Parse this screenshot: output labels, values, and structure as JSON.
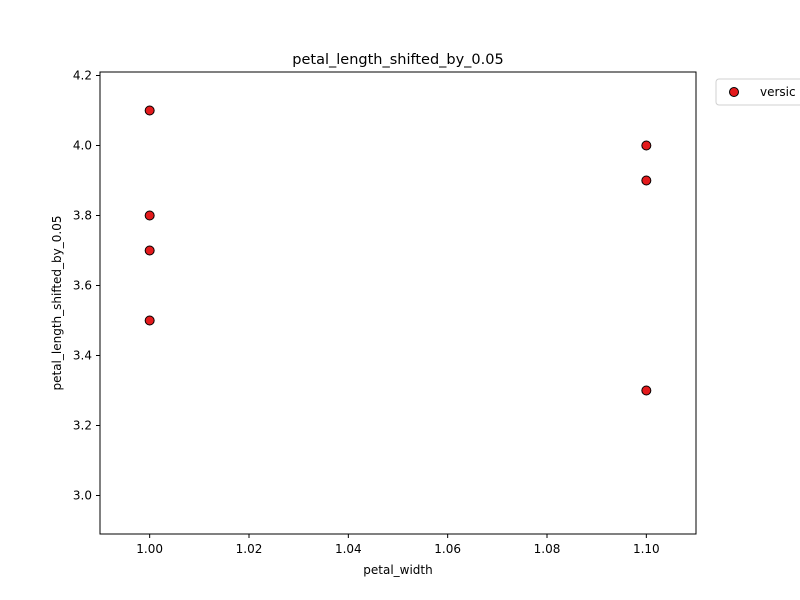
{
  "chart_data": {
    "type": "scatter",
    "title": "petal_length_shifted_by_0.05",
    "xlabel": "petal_width",
    "ylabel": "petal_length_shifted_by_0.05",
    "xlim": [
      0.99,
      1.11
    ],
    "ylim": [
      2.89,
      4.21
    ],
    "x_ticks": [
      1.0,
      1.02,
      1.04,
      1.06,
      1.08,
      1.1
    ],
    "x_tick_labels": [
      "1.00",
      "1.02",
      "1.04",
      "1.06",
      "1.08",
      "1.10"
    ],
    "y_ticks": [
      3.0,
      3.2,
      3.4,
      3.6,
      3.8,
      4.0,
      4.2
    ],
    "y_tick_labels": [
      "3.0",
      "3.2",
      "3.4",
      "3.6",
      "3.8",
      "4.0",
      "4.2"
    ],
    "grid": false,
    "legend_position": "outside-top-right",
    "series": [
      {
        "name": "versic",
        "color": "#e41a1c",
        "edge_color": "#000000",
        "points": [
          {
            "x": 1.0,
            "y": 4.1
          },
          {
            "x": 1.0,
            "y": 3.8
          },
          {
            "x": 1.0,
            "y": 3.7
          },
          {
            "x": 1.0,
            "y": 3.5
          },
          {
            "x": 1.1,
            "y": 4.0
          },
          {
            "x": 1.1,
            "y": 3.9
          },
          {
            "x": 1.1,
            "y": 3.3
          }
        ]
      }
    ]
  }
}
